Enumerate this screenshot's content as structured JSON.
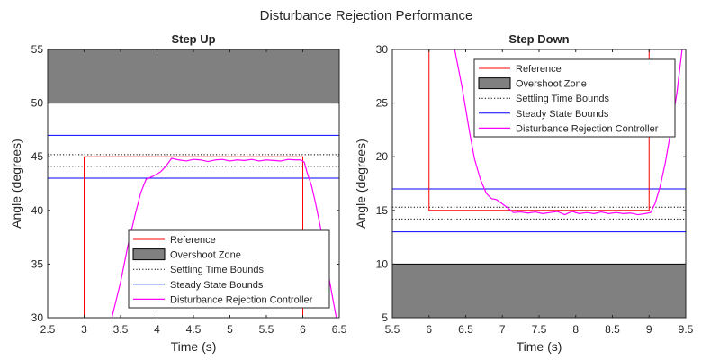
{
  "figure_title": "Disturbance Rejection Performance",
  "colors": {
    "reference": "#ff0000",
    "overshoot": "#808080",
    "settling": "#000000",
    "steady": "#0000ff",
    "controller": "#ff00ff"
  },
  "chart_data": [
    {
      "type": "line",
      "title": "Step Up",
      "xlabel": "Time (s)",
      "ylabel": "Angle (degrees)",
      "xlim": [
        2.5,
        6.5
      ],
      "ylim": [
        30,
        55
      ],
      "xticks": [
        2.5,
        3,
        3.5,
        4,
        4.5,
        5,
        5.5,
        6,
        6.5
      ],
      "xtick_labels": [
        "2.5",
        "3",
        "3.5",
        "4",
        "4.5",
        "5",
        "5.5",
        "6",
        "6.5"
      ],
      "yticks": [
        30,
        35,
        40,
        45,
        50,
        55
      ],
      "ytick_labels": [
        "30",
        "35",
        "40",
        "45",
        "50",
        "55"
      ],
      "legend_position": "bottom-right",
      "legend": [
        "Reference",
        "Overshoot Zone",
        "Settling Time Bounds",
        "Steady State Bounds",
        "Disturbance Rejection Controller"
      ],
      "overshoot_zone": [
        50,
        55
      ],
      "settling_bounds": [
        44.1,
        45.2
      ],
      "steady_bounds": [
        43,
        47
      ],
      "reference": {
        "x": [
          3,
          3,
          6,
          6
        ],
        "y": [
          30,
          45,
          45,
          30
        ]
      },
      "controller": {
        "x": [
          3.38,
          3.5,
          3.6,
          3.7,
          3.78,
          3.85,
          3.95,
          4.05,
          4.12,
          4.2,
          4.3,
          4.4,
          4.5,
          4.6,
          4.7,
          4.8,
          4.9,
          5.0,
          5.1,
          5.2,
          5.3,
          5.4,
          5.5,
          5.6,
          5.7,
          5.8,
          5.9,
          5.97,
          6.02,
          6.06,
          6.12,
          6.18,
          6.24,
          6.28,
          6.34,
          6.4,
          6.46
        ],
        "y": [
          30,
          33.3,
          36.7,
          39.6,
          41.7,
          42.9,
          43.2,
          43.6,
          44.1,
          44.85,
          44.7,
          44.6,
          44.75,
          44.7,
          44.55,
          44.7,
          44.75,
          44.6,
          44.7,
          44.65,
          44.75,
          44.6,
          44.7,
          44.65,
          44.6,
          44.75,
          44.7,
          44.7,
          44.5,
          43.5,
          42.3,
          40.5,
          38.5,
          36.9,
          34.5,
          32.2,
          30
        ]
      }
    },
    {
      "type": "line",
      "title": "Step Down",
      "xlabel": "Time (s)",
      "ylabel": "Angle (degrees)",
      "xlim": [
        5.5,
        9.5
      ],
      "ylim": [
        5,
        30
      ],
      "xticks": [
        5.5,
        6,
        6.5,
        7,
        7.5,
        8,
        8.5,
        9,
        9.5
      ],
      "xtick_labels": [
        "5.5",
        "6",
        "6.5",
        "7",
        "7.5",
        "8",
        "8.5",
        "9",
        "9.5"
      ],
      "yticks": [
        5,
        10,
        15,
        20,
        25,
        30
      ],
      "ytick_labels": [
        "5",
        "10",
        "15",
        "20",
        "25",
        "30"
      ],
      "legend_position": "top-right",
      "legend": [
        "Reference",
        "Overshoot Zone",
        "Settling Time Bounds",
        "Steady State Bounds",
        "Disturbance Rejection Controller"
      ],
      "overshoot_zone": [
        5,
        10
      ],
      "settling_bounds": [
        14.2,
        15.3
      ],
      "steady_bounds": [
        13,
        17
      ],
      "reference": {
        "x": [
          6,
          6,
          9,
          9
        ],
        "y": [
          30,
          15,
          15,
          30
        ]
      },
      "controller": {
        "x": [
          6.35,
          6.45,
          6.55,
          6.62,
          6.7,
          6.78,
          6.85,
          6.92,
          7.0,
          7.08,
          7.15,
          7.25,
          7.35,
          7.45,
          7.55,
          7.65,
          7.75,
          7.85,
          7.95,
          8.05,
          8.15,
          8.25,
          8.35,
          8.45,
          8.55,
          8.65,
          8.75,
          8.85,
          8.95,
          9.02,
          9.08,
          9.15,
          9.22,
          9.3,
          9.38,
          9.45
        ],
        "y": [
          30,
          26.5,
          22.4,
          19.8,
          17.9,
          16.6,
          16.1,
          16.0,
          15.6,
          15.2,
          14.8,
          14.85,
          14.75,
          14.85,
          14.7,
          14.8,
          14.9,
          14.6,
          14.9,
          14.7,
          14.8,
          14.7,
          14.85,
          14.7,
          14.8,
          14.7,
          14.75,
          14.6,
          14.7,
          14.8,
          15.6,
          17.2,
          19.4,
          22.5,
          26.0,
          30
        ]
      }
    }
  ]
}
